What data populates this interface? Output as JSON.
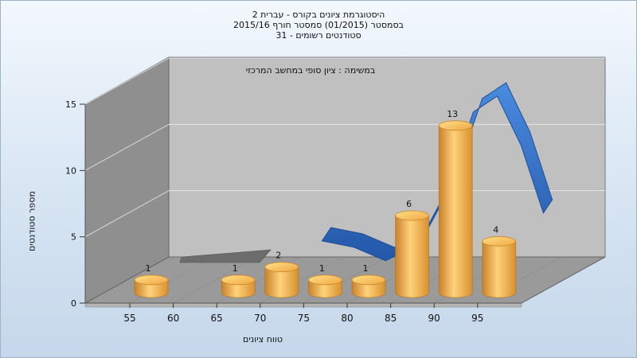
{
  "header": {
    "line1": "היסטוגרמת ציונים בקורס - עברית 2",
    "line2": "בסמסטר  (01/2015)  סמסטר חורף 2015/16",
    "line3": "סטודנטים רשומים - 31"
  },
  "chart_data": {
    "type": "bar",
    "subtitle": "במשימה : ציון סופי במחשב המרכזי",
    "xlabel": "טווח ציונים",
    "ylabel": "מספר סטודנטים",
    "x_ticks": [
      "55",
      "60",
      "65",
      "70",
      "75",
      "80",
      "85",
      "90",
      "95"
    ],
    "y_ticks": [
      0,
      5,
      10,
      15
    ],
    "ylim": [
      0,
      15
    ],
    "categories": [
      "55",
      "65",
      "70",
      "75",
      "80",
      "85",
      "90",
      "95"
    ],
    "values": [
      1,
      1,
      2,
      1,
      1,
      6,
      13,
      4
    ],
    "data_labels": [
      "1",
      "1",
      "2",
      "1",
      "1",
      "6",
      "13",
      "4"
    ],
    "curve_type": "smoothed distribution ribbon",
    "grid": true,
    "colors": {
      "bar": "#f0a640",
      "bar_top": "#ffc85a",
      "curve": "#2f6fc4",
      "back_wall": "#c0c0c0",
      "side_wall": "#8f8f8f",
      "floor": "#9a9a9a"
    }
  }
}
